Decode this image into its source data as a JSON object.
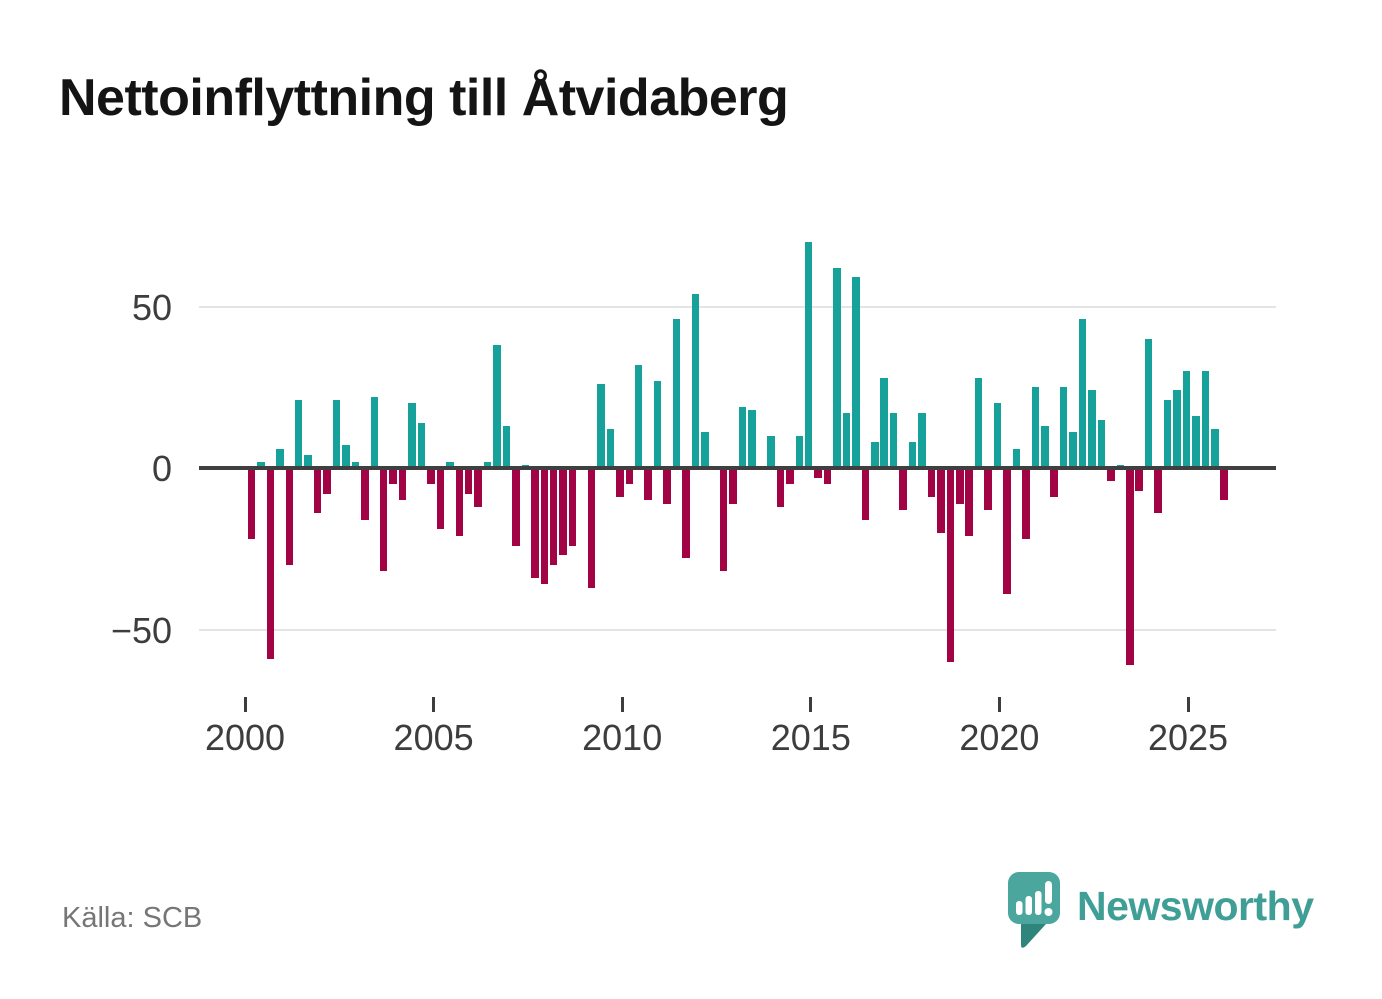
{
  "title": "Nettoinflyttning till Åtvidaberg",
  "source": "Källa: SCB",
  "logo": {
    "brand": "Newsworthy"
  },
  "colors": {
    "positive": "#16a29a",
    "negative": "#a10345",
    "axis": "#3f3f3f",
    "grid": "#e4e4e4",
    "tick_label": "#3d3d3d",
    "title_text": "#141414",
    "source_text": "#767676",
    "logo_text": "#3f9f97",
    "logo_bubble": "#4ba69d",
    "logo_bubble_shade": "#2f857c"
  },
  "chart_data": {
    "type": "bar",
    "title": "Nettoinflyttning till Åtvidaberg",
    "frequency": "quarterly",
    "start_period": "2000Q1",
    "end_period": "2025Q4",
    "y_axis": {
      "tick_labels": [
        "50",
        "0",
        "−50"
      ],
      "tick_values": [
        50,
        0,
        -50
      ],
      "range": [
        -70,
        75
      ],
      "grid": true
    },
    "x_axis": {
      "tick_labels": [
        "2000",
        "2005",
        "2010",
        "2015",
        "2020",
        "2025"
      ],
      "tick_years": [
        2000,
        2005,
        2010,
        2015,
        2020,
        2025
      ]
    },
    "series": [
      {
        "name": "Nettoinflyttning",
        "values": [
          -22,
          2,
          -59,
          6,
          -30,
          21,
          4,
          -14,
          -8,
          21,
          7,
          2,
          -16,
          22,
          -32,
          -5,
          -10,
          20,
          14,
          -5,
          -19,
          2,
          -21,
          -8,
          -12,
          2,
          38,
          13,
          -24,
          1,
          -34,
          -36,
          -30,
          -27,
          -24,
          0,
          -37,
          26,
          12,
          -9,
          -5,
          32,
          -10,
          27,
          -11,
          46,
          -28,
          54,
          11,
          0,
          -32,
          -11,
          19,
          18,
          0,
          10,
          -12,
          -5,
          10,
          70,
          -3,
          -5,
          62,
          17,
          59,
          -16,
          8,
          28,
          17,
          -13,
          8,
          17,
          -9,
          -20,
          -60,
          -11,
          -21,
          28,
          -13,
          20,
          -39,
          6,
          -22,
          25,
          13,
          -9,
          25,
          11,
          46,
          24,
          15,
          -4,
          1,
          -61,
          -7,
          40,
          -14,
          21,
          24,
          30,
          16,
          30,
          12,
          -10
        ]
      }
    ],
    "positive_color": "#16a29a",
    "negative_color": "#a10345"
  }
}
